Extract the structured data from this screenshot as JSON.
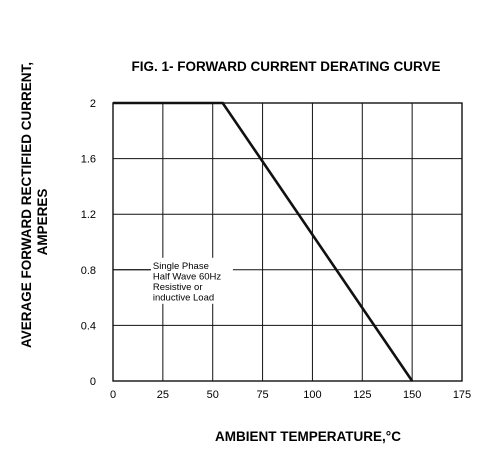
{
  "chart_data": {
    "type": "line",
    "title": "FIG. 1- FORWARD CURRENT DERATING CURVE",
    "xlabel": "AMBIENT TEMPERATURE,°C",
    "ylabel_lines": [
      "AVERAGE FORWARD RECTIFIED CURRENT,",
      "AMPERES"
    ],
    "xlim": [
      0,
      175
    ],
    "ylim": [
      0,
      2
    ],
    "x_ticks": [
      0,
      25,
      50,
      75,
      100,
      125,
      150,
      175
    ],
    "x_tick_labels": [
      "0",
      "25",
      "50",
      "75",
      "100",
      "125",
      "150",
      "175"
    ],
    "y_ticks": [
      0,
      0.4,
      0.8,
      1.2,
      1.6,
      2
    ],
    "y_tick_labels": [
      "0",
      "0.4",
      "0.8",
      "1.2",
      "1.6",
      "2"
    ],
    "grid": true,
    "series": [
      {
        "x": [
          0,
          55,
          150
        ],
        "y": [
          2,
          2,
          0
        ]
      }
    ],
    "annotation": {
      "lines": [
        "Single Phase",
        "Half Wave 60Hz",
        "Resistive or",
        "inductive Load"
      ],
      "leader_x_range": [
        0,
        20
      ],
      "leader_y": 0.8
    }
  }
}
